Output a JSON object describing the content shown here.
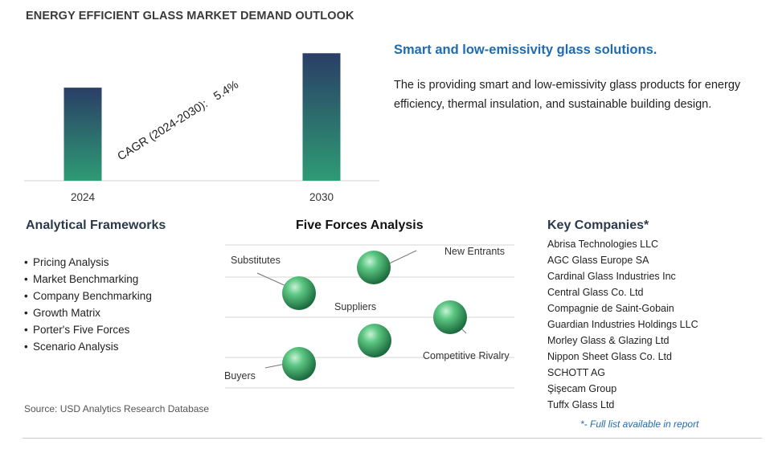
{
  "title": "ENERGY EFFICIENT GLASS MARKET DEMAND OUTLOOK",
  "chart_data": {
    "type": "bar",
    "categories": [
      "2024",
      "2030"
    ],
    "values": [
      1.0,
      1.37
    ],
    "ylim": [
      0,
      1.45
    ],
    "grid": false,
    "annotation": "CAGR (2024-2030):   5.4%",
    "colors": {
      "bar_top": "#2a3e66",
      "bar_bottom": "#2e9b74"
    }
  },
  "description": {
    "heading": "Smart and low-emissivity glass solutions.",
    "text": "The is providing smart and low-emissivity glass products for energy efficiency, thermal insulation, and sustainable building design."
  },
  "frameworks": {
    "heading": "Analytical Frameworks",
    "items": [
      "Pricing Analysis",
      "Market Benchmarking",
      "Company Benchmarking",
      "Growth Matrix",
      "Porter's Five Forces",
      "Scenario Analysis"
    ]
  },
  "five_forces": {
    "heading": "Five Forces Analysis",
    "labels": [
      "New Entrants",
      "Substitutes",
      "Suppliers",
      "Competitive Rivalry",
      "Buyers"
    ],
    "sphere_color": "#2e9b5a"
  },
  "companies": {
    "heading": "Key Companies*",
    "items": [
      "Abrisa Technologies LLC",
      "AGC Glass Europe SA",
      "Cardinal Glass Industries Inc",
      "Central Glass Co. Ltd",
      "Compagnie de Saint-Gobain",
      "Guardian Industries Holdings LLC",
      "Morley Glass & Glazing Ltd",
      "Nippon Sheet Glass Co. Ltd",
      "SCHOTT AG",
      "Şişecam Group",
      "Tuffx Glass Ltd"
    ],
    "footnote": "*- Full list available in report"
  },
  "source": "Source: USD Analytics Research Database"
}
